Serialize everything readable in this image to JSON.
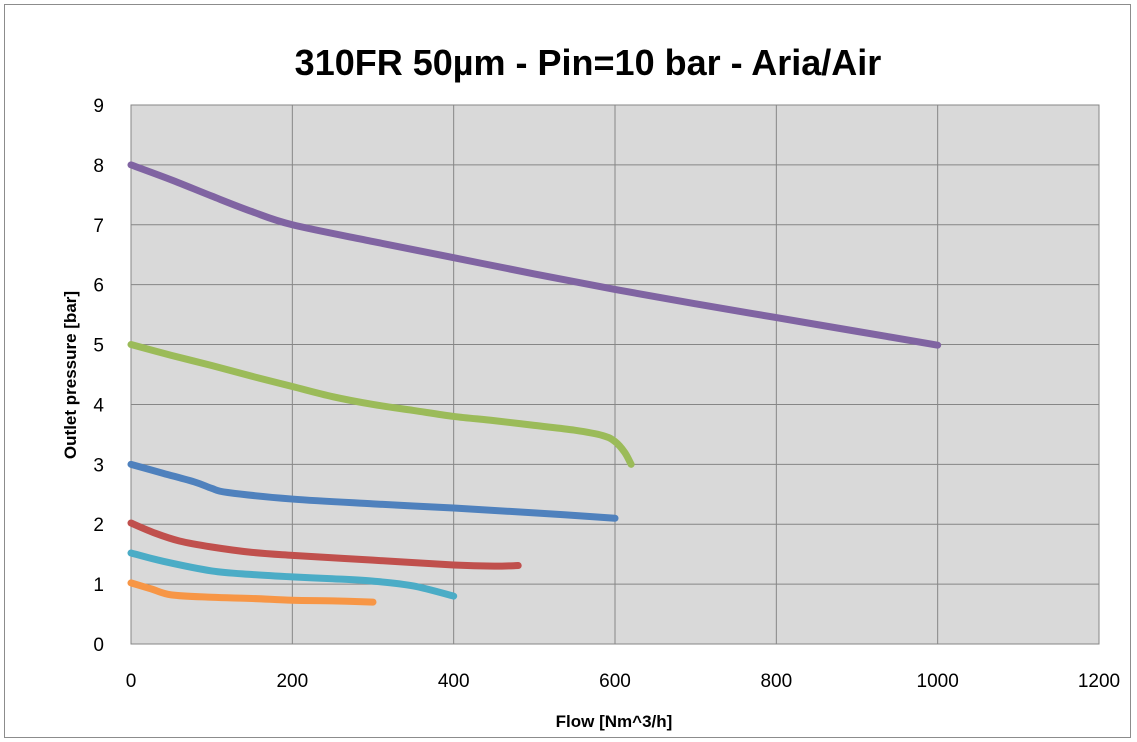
{
  "chart_data": {
    "type": "line",
    "title": "310FR 50µm - Pin=10 bar - Aria/Air",
    "xlabel": "Flow [Nm^3/h]",
    "ylabel": "Outlet pressure [bar]",
    "xlim": [
      0,
      1200
    ],
    "ylim": [
      0,
      9
    ],
    "x_ticks": [
      "0",
      "200",
      "400",
      "600",
      "800",
      "1000",
      "1200"
    ],
    "y_ticks": [
      "0",
      "1",
      "2",
      "3",
      "4",
      "5",
      "6",
      "7",
      "8",
      "9"
    ],
    "grid": true,
    "legend": "none",
    "plot_background": "#d9d9d9",
    "series": [
      {
        "color": "#8064a2",
        "points": [
          [
            0,
            8.0
          ],
          [
            50,
            7.75
          ],
          [
            100,
            7.48
          ],
          [
            150,
            7.22
          ],
          [
            200,
            7.0
          ],
          [
            300,
            6.72
          ],
          [
            400,
            6.45
          ],
          [
            500,
            6.18
          ],
          [
            600,
            5.92
          ],
          [
            700,
            5.68
          ],
          [
            800,
            5.45
          ],
          [
            900,
            5.22
          ],
          [
            1000,
            4.99
          ]
        ]
      },
      {
        "color": "#9bbb59",
        "points": [
          [
            0,
            5.0
          ],
          [
            50,
            4.82
          ],
          [
            100,
            4.65
          ],
          [
            150,
            4.47
          ],
          [
            200,
            4.3
          ],
          [
            250,
            4.13
          ],
          [
            300,
            4.0
          ],
          [
            350,
            3.9
          ],
          [
            400,
            3.8
          ],
          [
            450,
            3.73
          ],
          [
            500,
            3.65
          ],
          [
            550,
            3.57
          ],
          [
            585,
            3.48
          ],
          [
            600,
            3.38
          ],
          [
            612,
            3.2
          ],
          [
            620,
            3.0
          ]
        ]
      },
      {
        "color": "#4f81bd",
        "points": [
          [
            0,
            3.0
          ],
          [
            40,
            2.85
          ],
          [
            80,
            2.7
          ],
          [
            100,
            2.6
          ],
          [
            120,
            2.53
          ],
          [
            200,
            2.42
          ],
          [
            300,
            2.34
          ],
          [
            400,
            2.27
          ],
          [
            500,
            2.19
          ],
          [
            600,
            2.1
          ]
        ]
      },
      {
        "color": "#c0504d",
        "points": [
          [
            0,
            2.02
          ],
          [
            30,
            1.85
          ],
          [
            60,
            1.72
          ],
          [
            100,
            1.62
          ],
          [
            150,
            1.53
          ],
          [
            200,
            1.48
          ],
          [
            300,
            1.4
          ],
          [
            400,
            1.32
          ],
          [
            450,
            1.3
          ],
          [
            480,
            1.31
          ]
        ]
      },
      {
        "color": "#4bacc6",
        "points": [
          [
            0,
            1.52
          ],
          [
            40,
            1.38
          ],
          [
            100,
            1.22
          ],
          [
            150,
            1.16
          ],
          [
            200,
            1.12
          ],
          [
            250,
            1.09
          ],
          [
            300,
            1.05
          ],
          [
            350,
            0.97
          ],
          [
            400,
            0.8
          ]
        ]
      },
      {
        "color": "#f79646",
        "points": [
          [
            0,
            1.02
          ],
          [
            25,
            0.92
          ],
          [
            50,
            0.82
          ],
          [
            100,
            0.78
          ],
          [
            150,
            0.76
          ],
          [
            200,
            0.73
          ],
          [
            250,
            0.72
          ],
          [
            300,
            0.7
          ]
        ]
      }
    ]
  }
}
